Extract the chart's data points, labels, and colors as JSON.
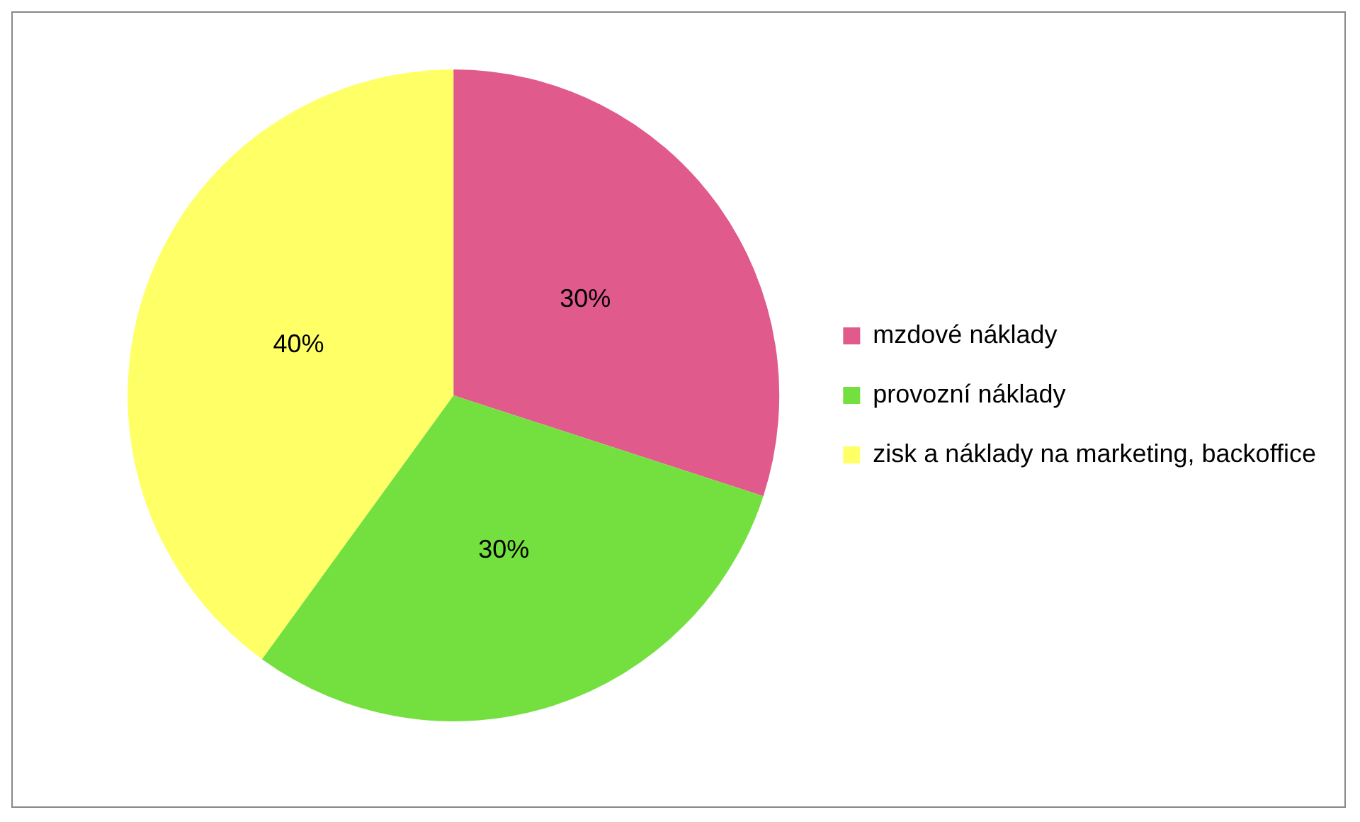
{
  "chart_data": {
    "type": "pie",
    "categories": [
      "mzdové náklady",
      "provozní náklady",
      "zisk a náklady na marketing, backoffice"
    ],
    "values": [
      30,
      30,
      40
    ],
    "colors": [
      "#e05a8c",
      "#74e040",
      "#ffff66"
    ],
    "value_labels": [
      "30%",
      "30%",
      "40%"
    ],
    "legend": "right"
  }
}
